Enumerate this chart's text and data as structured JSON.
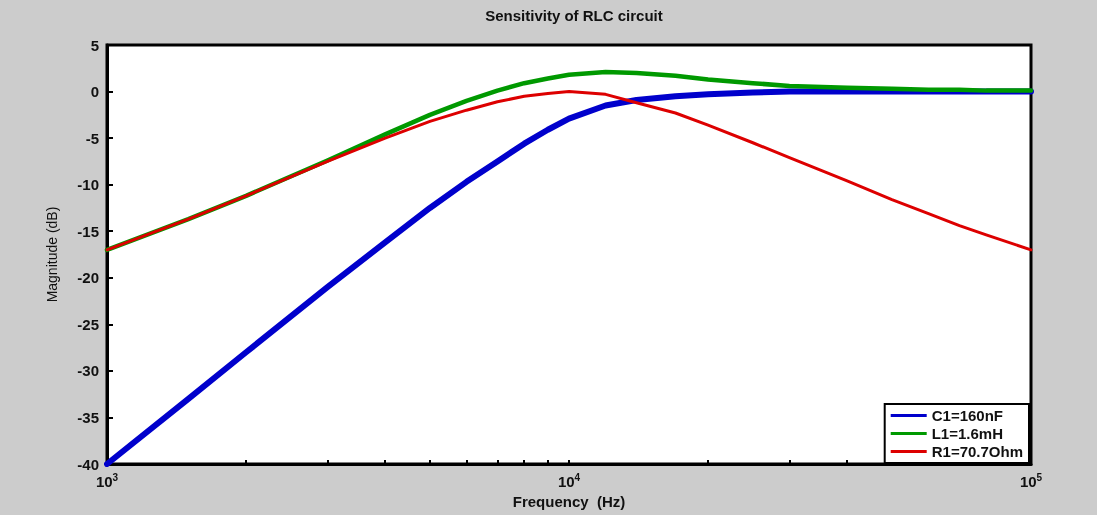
{
  "chart_data": {
    "type": "line",
    "title": "Sensitivity of RLC circuit",
    "xlabel": "Frequency  (Hz)",
    "ylabel": "Magnitude (dB)",
    "x": [
      1000,
      1500,
      2000,
      3000,
      4000,
      5000,
      6000,
      7000,
      8000,
      9000,
      10000,
      12000,
      14000,
      17000,
      20000,
      25000,
      30000,
      40000,
      50000,
      60000,
      70000,
      80000,
      100000
    ],
    "series": [
      {
        "name": "C1=160nF",
        "color": "#0000cc",
        "values": [
          -40,
          -33,
          -28,
          -21,
          -16.2,
          -12.5,
          -9.7,
          -7.5,
          -5.6,
          -4.1,
          -2.9,
          -1.5,
          -0.9,
          -0.5,
          -0.3,
          -0.1,
          0,
          0,
          0,
          0,
          0,
          0,
          0
        ]
      },
      {
        "name": "L1=1.6mH",
        "color": "#009900",
        "values": [
          -17,
          -13.7,
          -11.2,
          -7.4,
          -4.6,
          -2.5,
          -1,
          0.1,
          0.9,
          1.4,
          1.8,
          2.1,
          2,
          1.7,
          1.3,
          0.9,
          0.6,
          0.4,
          0.3,
          0.2,
          0.2,
          0.1,
          0.1
        ]
      },
      {
        "name": "R1=70.7Ohm",
        "color": "#dd0000",
        "values": [
          -17,
          -13.7,
          -11.2,
          -7.5,
          -5,
          -3.2,
          -2,
          -1.1,
          -0.5,
          -0.2,
          0,
          -0.3,
          -1.2,
          -2.3,
          -3.6,
          -5.5,
          -7.1,
          -9.6,
          -11.6,
          -13.1,
          -14.4,
          -15.4,
          -17
        ]
      }
    ],
    "log": "x",
    "xlim": [
      1000,
      100000
    ],
    "xticks": [
      {
        "value": 1000,
        "label": "10$^{3}$"
      },
      {
        "value": 2000,
        "label": null
      },
      {
        "value": 3000,
        "label": null
      },
      {
        "value": 4000,
        "label": null
      },
      {
        "value": 5000,
        "label": null
      },
      {
        "value": 6000,
        "label": null
      },
      {
        "value": 7000,
        "label": null
      },
      {
        "value": 8000,
        "label": null
      },
      {
        "value": 9000,
        "label": null
      },
      {
        "value": 10000,
        "label": "10$^{4}$"
      },
      {
        "value": 20000,
        "label": null
      },
      {
        "value": 30000,
        "label": null
      },
      {
        "value": 40000,
        "label": null
      },
      {
        "value": 50000,
        "label": null
      },
      {
        "value": 60000,
        "label": null
      },
      {
        "value": 70000,
        "label": null
      },
      {
        "value": 80000,
        "label": null
      },
      {
        "value": 90000,
        "label": null
      },
      {
        "value": 100000,
        "label": "10$^{5}$"
      }
    ],
    "ylim": [
      -40,
      5
    ],
    "yticks": [
      -40,
      -35,
      -30,
      -25,
      -20,
      -15,
      -10,
      -5,
      0,
      5
    ],
    "grid": false,
    "legend": "bottom right",
    "marker": "none",
    "line_style": "solid"
  }
}
